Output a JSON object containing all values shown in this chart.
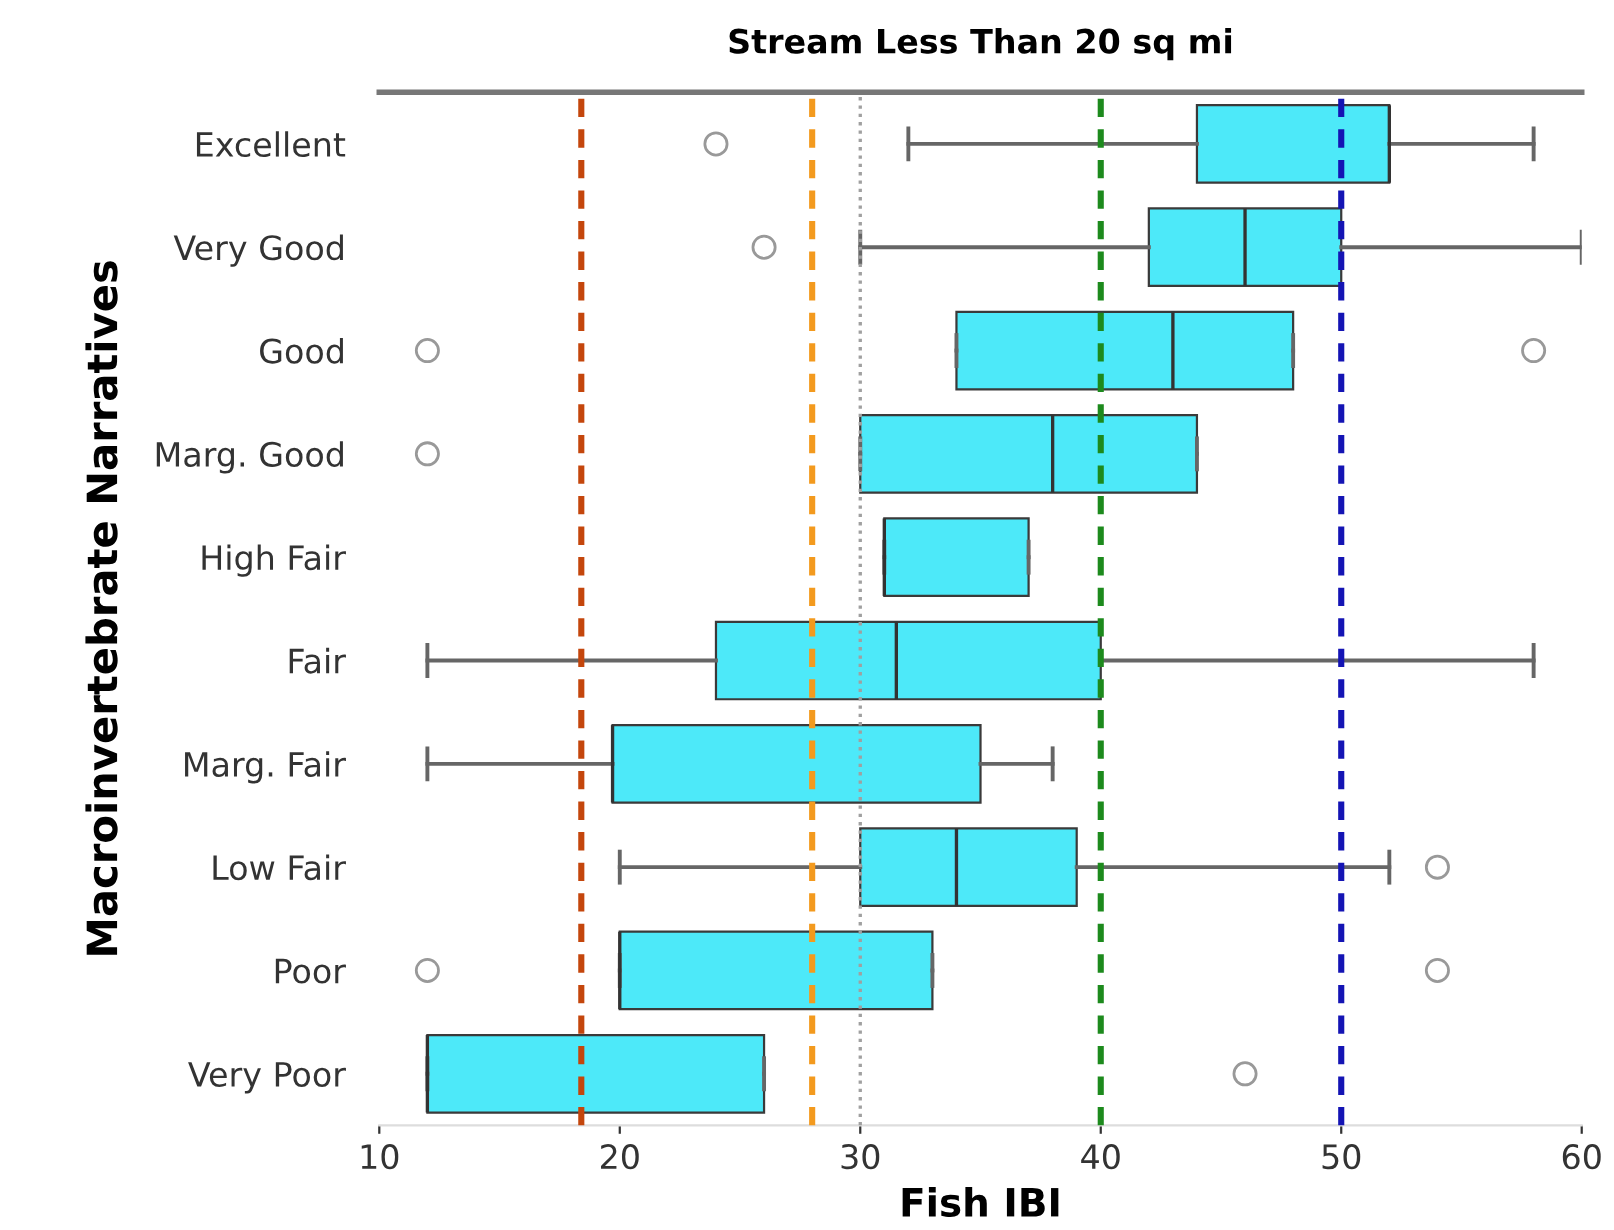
{
  "chart_data": {
    "type": "box",
    "title": "Stream Less Than 20 sq mi",
    "xlabel": "Fish IBI",
    "ylabel": "Macroinvertebrate Narratives",
    "orientation": "horizontal",
    "categories": [
      "Excellent",
      "Very Good",
      "Good",
      "Marg. Good",
      "High Fair",
      "Fair",
      "Marg. Fair",
      "Low Fair",
      "Poor",
      "Very Poor"
    ],
    "color": "#4de9f9",
    "boxes": [
      {
        "low": 32,
        "q1": 44,
        "median": 52,
        "q3": 52,
        "high": 58,
        "outliers": [
          24
        ]
      },
      {
        "low": 30,
        "q1": 42,
        "median": 46,
        "q3": 50,
        "high": 60,
        "outliers": [
          26
        ]
      },
      {
        "low": 34,
        "q1": 34,
        "median": 43,
        "q3": 48,
        "high": 48,
        "outliers": [
          12,
          58
        ]
      },
      {
        "low": 30,
        "q1": 30,
        "median": 38,
        "q3": 44,
        "high": 44,
        "outliers": [
          12
        ]
      },
      {
        "low": 31,
        "q1": 31,
        "median": 31,
        "q3": 37,
        "high": 37
      },
      {
        "low": 12,
        "q1": 24,
        "median": 31.5,
        "q3": 40,
        "high": 58
      },
      {
        "low": 12,
        "q1": 19.7,
        "median": 19.7,
        "q3": 35,
        "high": 38
      },
      {
        "low": 20,
        "q1": 30,
        "median": 34,
        "q3": 39,
        "high": 52,
        "outliers": [
          54
        ]
      },
      {
        "low": 20,
        "q1": 20,
        "median": 20,
        "q3": 33,
        "high": 33,
        "outliers": [
          12,
          54
        ]
      },
      {
        "low": 12,
        "q1": 12,
        "median": 12,
        "q3": 26,
        "high": 26,
        "outliers": [
          46
        ]
      }
    ],
    "xlim": [
      10,
      60
    ],
    "xticks": [
      10,
      20,
      30,
      40,
      50,
      60
    ],
    "ref_lines": [
      {
        "axis": "x",
        "value": 18.4,
        "color": "#c4460c",
        "line_style": "dashed"
      },
      {
        "axis": "x",
        "value": 28,
        "color": "#f39a1e",
        "line_style": "dashed"
      },
      {
        "axis": "x",
        "value": 30,
        "color": "#a0a0a0",
        "line_style": "dotted"
      },
      {
        "axis": "x",
        "value": 40,
        "color": "#1d8a1d",
        "line_style": "dashed"
      },
      {
        "axis": "x",
        "value": 50,
        "color": "#1414b4",
        "line_style": "dashed"
      }
    ],
    "grid": false,
    "legend": false
  }
}
